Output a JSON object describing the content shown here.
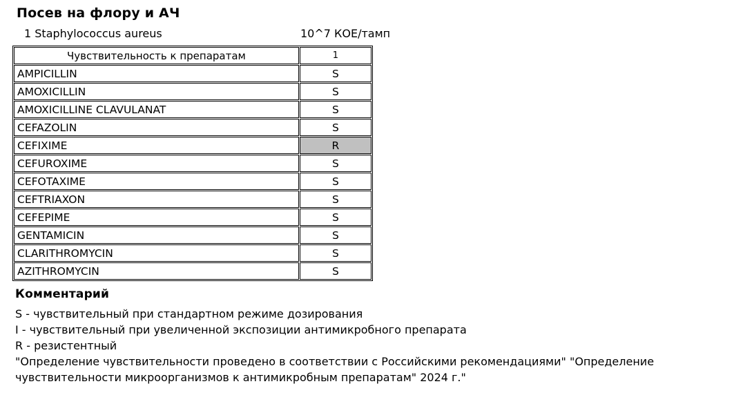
{
  "page": {
    "title": "Посев на флору и АЧ"
  },
  "organism": {
    "name": "1 Staphylococcus aureus",
    "quantity": "10^7 КОЕ/тамп"
  },
  "table": {
    "header": {
      "col1": "Чувствительность к препаратам",
      "col2": "1"
    },
    "resistant_bg": "#c0c0c0",
    "rows": [
      {
        "drug": "AMPICILLIN",
        "result": "S"
      },
      {
        "drug": "AMOXICILLIN",
        "result": "S"
      },
      {
        "drug": "AMOXICILLINE CLAVULANAT",
        "result": "S"
      },
      {
        "drug": "CEFAZOLIN",
        "result": "S"
      },
      {
        "drug": "CEFIXIME",
        "result": "R"
      },
      {
        "drug": "CEFUROXIME",
        "result": "S"
      },
      {
        "drug": "CEFOTAXIME",
        "result": "S"
      },
      {
        "drug": "CEFTRIAXON",
        "result": "S"
      },
      {
        "drug": "CEFEPIME",
        "result": "S"
      },
      {
        "drug": "GENTAMICIN",
        "result": "S"
      },
      {
        "drug": "CLARITHROMYCIN",
        "result": "S"
      },
      {
        "drug": "AZITHROMYCIN",
        "result": "S"
      }
    ]
  },
  "comment": {
    "heading": "Комментарий",
    "lines": [
      "S - чувствительный при стандартном режиме дозирования",
      "I - чувствительный при увеличенной экспозиции антимикробного препарата",
      "R - резистентный",
      "\"Определение чувствительности проведено в соответствии с Российскими рекомендациями\" \"Определение чувствительности микроорганизмов к антимикробным препаратам\" 2024 г.\""
    ]
  }
}
